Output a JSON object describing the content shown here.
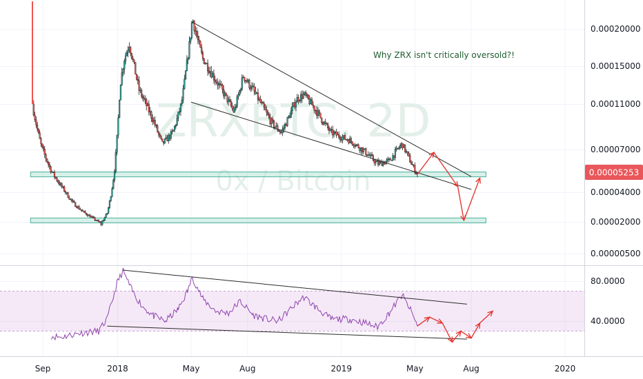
{
  "chart_data": [
    {
      "type": "candlestick",
      "watermark": {
        "symbol": "ZRXBTC, 2D",
        "name": "0x / Bitcoin"
      },
      "annotation": "Why ZRX isn't critically oversold?!",
      "last_price": "0.00005253",
      "y_ticks": [
        "0.00020000",
        "0.00015000",
        "0.00011000",
        "0.00007000",
        "0.00004000",
        "0.00002000",
        "0.00000500"
      ],
      "x_ticks": [
        "Sep",
        "2018",
        "May",
        "Aug",
        "2019",
        "May",
        "Aug",
        "2020"
      ],
      "price_path": [
        [
          "2017-08-15",
          0.00011
        ],
        [
          "2017-08-30",
          7.2e-05
        ],
        [
          "2017-09-15",
          5.5e-05
        ],
        [
          "2017-10-05",
          4.2e-05
        ],
        [
          "2017-10-20",
          3.3e-05
        ],
        [
          "2017-11-05",
          2.7e-05
        ],
        [
          "2017-11-20",
          2.3e-05
        ],
        [
          "2017-12-05",
          1.9e-05
        ],
        [
          "2017-12-15",
          2.6e-05
        ],
        [
          "2017-12-28",
          6e-05
        ],
        [
          "2018-01-05",
          0.00013
        ],
        [
          "2018-01-12",
          0.00016
        ],
        [
          "2018-01-20",
          0.00018
        ],
        [
          "2018-02-05",
          0.000125
        ],
        [
          "2018-03-01",
          9.5e-05
        ],
        [
          "2018-03-15",
          7.5e-05
        ],
        [
          "2018-04-01",
          8.5e-05
        ],
        [
          "2018-04-15",
          0.00011
        ],
        [
          "2018-05-03",
          0.000215
        ],
        [
          "2018-05-20",
          0.00016
        ],
        [
          "2018-06-20",
          0.000125
        ],
        [
          "2018-07-10",
          0.000103
        ],
        [
          "2018-07-25",
          0.00014
        ],
        [
          "2018-08-10",
          0.000125
        ],
        [
          "2018-09-10",
          9.3e-05
        ],
        [
          "2018-09-25",
          8.5e-05
        ],
        [
          "2018-10-20",
          0.000115
        ],
        [
          "2018-11-01",
          0.00012
        ],
        [
          "2018-11-20",
          0.000105
        ],
        [
          "2018-12-15",
          8.5e-05
        ],
        [
          "2019-01-15",
          7.8e-05
        ],
        [
          "2019-02-10",
          6.8e-05
        ],
        [
          "2019-03-01",
          6e-05
        ],
        [
          "2019-03-20",
          6.2e-05
        ],
        [
          "2019-04-10",
          7.5e-05
        ],
        [
          "2019-04-20",
          6.5e-05
        ],
        [
          "2019-05-05",
          5.253e-05
        ]
      ],
      "support_zones": [
        5.253e-05,
        2.1e-05
      ],
      "trendlines": [
        {
          "from": [
            "2018-05-01",
            0.00021
          ],
          "to": [
            "2019-08-01",
            5.1e-05
          ]
        },
        {
          "from": [
            "2018-05-01",
            0.000112
          ],
          "to": [
            "2019-08-01",
            4.2e-05
          ]
        }
      ],
      "projection": [
        [
          "2019-05-05",
          5.253e-05
        ],
        [
          "2019-06-01",
          6.8e-05
        ],
        [
          "2019-07-10",
          4.4e-05
        ],
        [
          "2019-07-20",
          2.1e-05
        ],
        [
          "2019-08-15",
          5e-05
        ]
      ]
    },
    {
      "type": "line",
      "indicator": "RSI",
      "y_ticks": [
        "80.0000",
        "40.0000"
      ],
      "band": [
        30,
        70
      ],
      "rsi": [
        [
          "2017-09-15",
          25
        ],
        [
          "2017-10-01",
          24
        ],
        [
          "2017-10-15",
          26
        ],
        [
          "2017-11-01",
          28
        ],
        [
          "2017-11-15",
          29
        ],
        [
          "2017-12-01",
          30
        ],
        [
          "2017-12-15",
          42
        ],
        [
          "2018-01-01",
          80
        ],
        [
          "2018-01-10",
          90
        ],
        [
          "2018-01-25",
          70
        ],
        [
          "2018-02-10",
          55
        ],
        [
          "2018-03-01",
          45
        ],
        [
          "2018-03-20",
          40
        ],
        [
          "2018-04-10",
          52
        ],
        [
          "2018-04-25",
          70
        ],
        [
          "2018-05-03",
          84
        ],
        [
          "2018-05-20",
          62
        ],
        [
          "2018-06-10",
          50
        ],
        [
          "2018-07-01",
          48
        ],
        [
          "2018-07-20",
          60
        ],
        [
          "2018-08-10",
          46
        ],
        [
          "2018-09-01",
          42
        ],
        [
          "2018-09-20",
          40
        ],
        [
          "2018-10-20",
          58
        ],
        [
          "2018-11-01",
          64
        ],
        [
          "2018-11-20",
          54
        ],
        [
          "2018-12-15",
          42
        ],
        [
          "2019-01-15",
          42
        ],
        [
          "2019-02-10",
          38
        ],
        [
          "2019-03-01",
          34
        ],
        [
          "2019-03-20",
          48
        ],
        [
          "2019-04-10",
          66
        ],
        [
          "2019-04-25",
          50
        ],
        [
          "2019-05-05",
          35
        ]
      ],
      "trendlines": [
        {
          "from": [
            "2018-01-10",
            91
          ],
          "to": [
            "2019-07-25",
            57
          ]
        },
        {
          "from": [
            "2017-12-15",
            35
          ],
          "to": [
            "2019-07-25",
            22
          ]
        }
      ],
      "projection": [
        [
          "2019-05-05",
          35
        ],
        [
          "2019-05-25",
          44
        ],
        [
          "2019-06-15",
          38
        ],
        [
          "2019-07-01",
          19
        ],
        [
          "2019-07-15",
          30
        ],
        [
          "2019-08-01",
          23
        ],
        [
          "2019-08-15",
          38
        ],
        [
          "2019-09-05",
          50
        ]
      ]
    }
  ]
}
